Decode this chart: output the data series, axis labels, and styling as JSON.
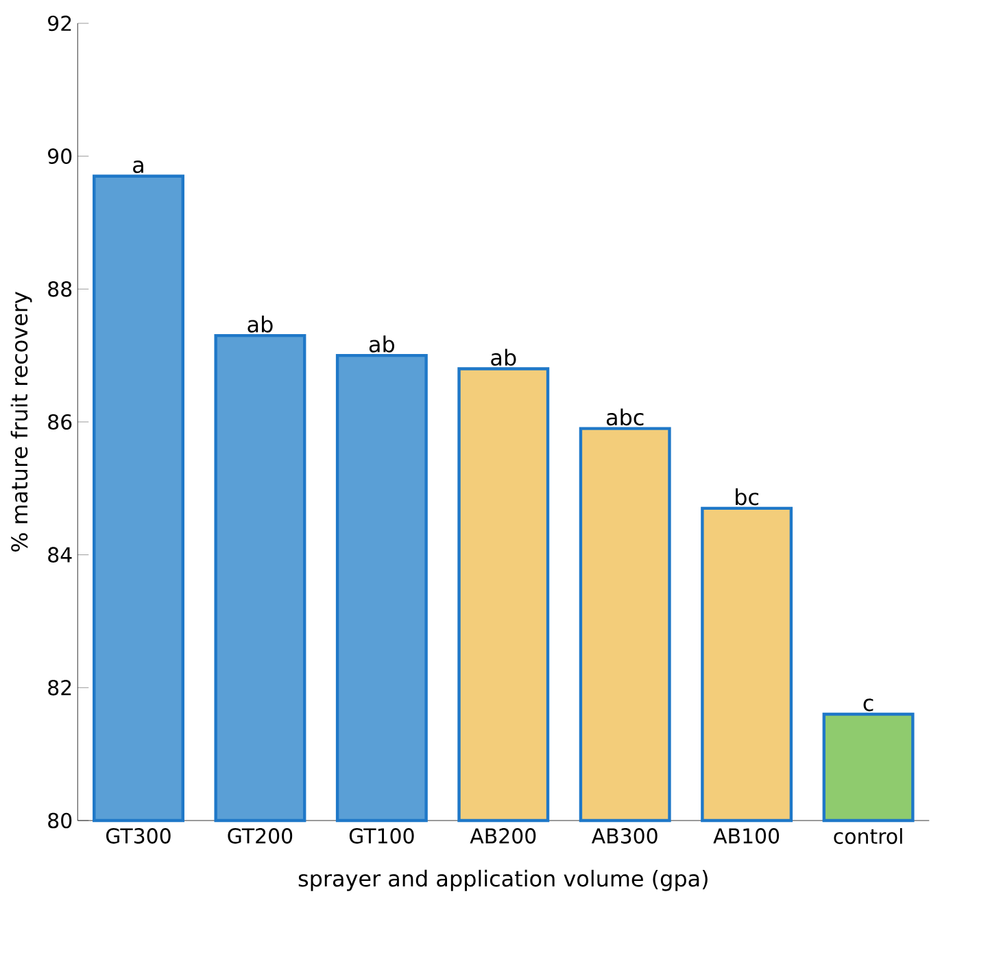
{
  "chart_data": {
    "type": "bar",
    "xlabel": "sprayer and application volume (gpa)",
    "ylabel": "% mature fruit recovery",
    "categories": [
      "GT300",
      "GT200",
      "GT100",
      "AB200",
      "AB300",
      "AB100",
      "control"
    ],
    "values": [
      89.7,
      87.3,
      87.0,
      86.8,
      85.9,
      84.7,
      81.6
    ],
    "colors": [
      "#5a9fd6",
      "#5a9fd6",
      "#5a9fd6",
      "#f3cd7a",
      "#f3cd7a",
      "#f3cd7a",
      "#8fcb6e"
    ],
    "ylim": [
      80,
      92
    ],
    "yticks": [
      80,
      82,
      84,
      86,
      88,
      90,
      92
    ],
    "annotations": [
      {
        "text": "a",
        "x": "GT300",
        "y": 89.7
      },
      {
        "text": "ab",
        "x": "GT200",
        "y": 87.3
      },
      {
        "text": "ab",
        "x": "GT100",
        "y": 87.0
      },
      {
        "text": "ab",
        "x": "AB200",
        "y": 86.8
      },
      {
        "text": "abc",
        "x": "AB300",
        "y": 85.9
      },
      {
        "text": "bc",
        "x": "AB100",
        "y": 84.7
      },
      {
        "text": "c",
        "x": "control",
        "y": 81.6
      }
    ]
  }
}
